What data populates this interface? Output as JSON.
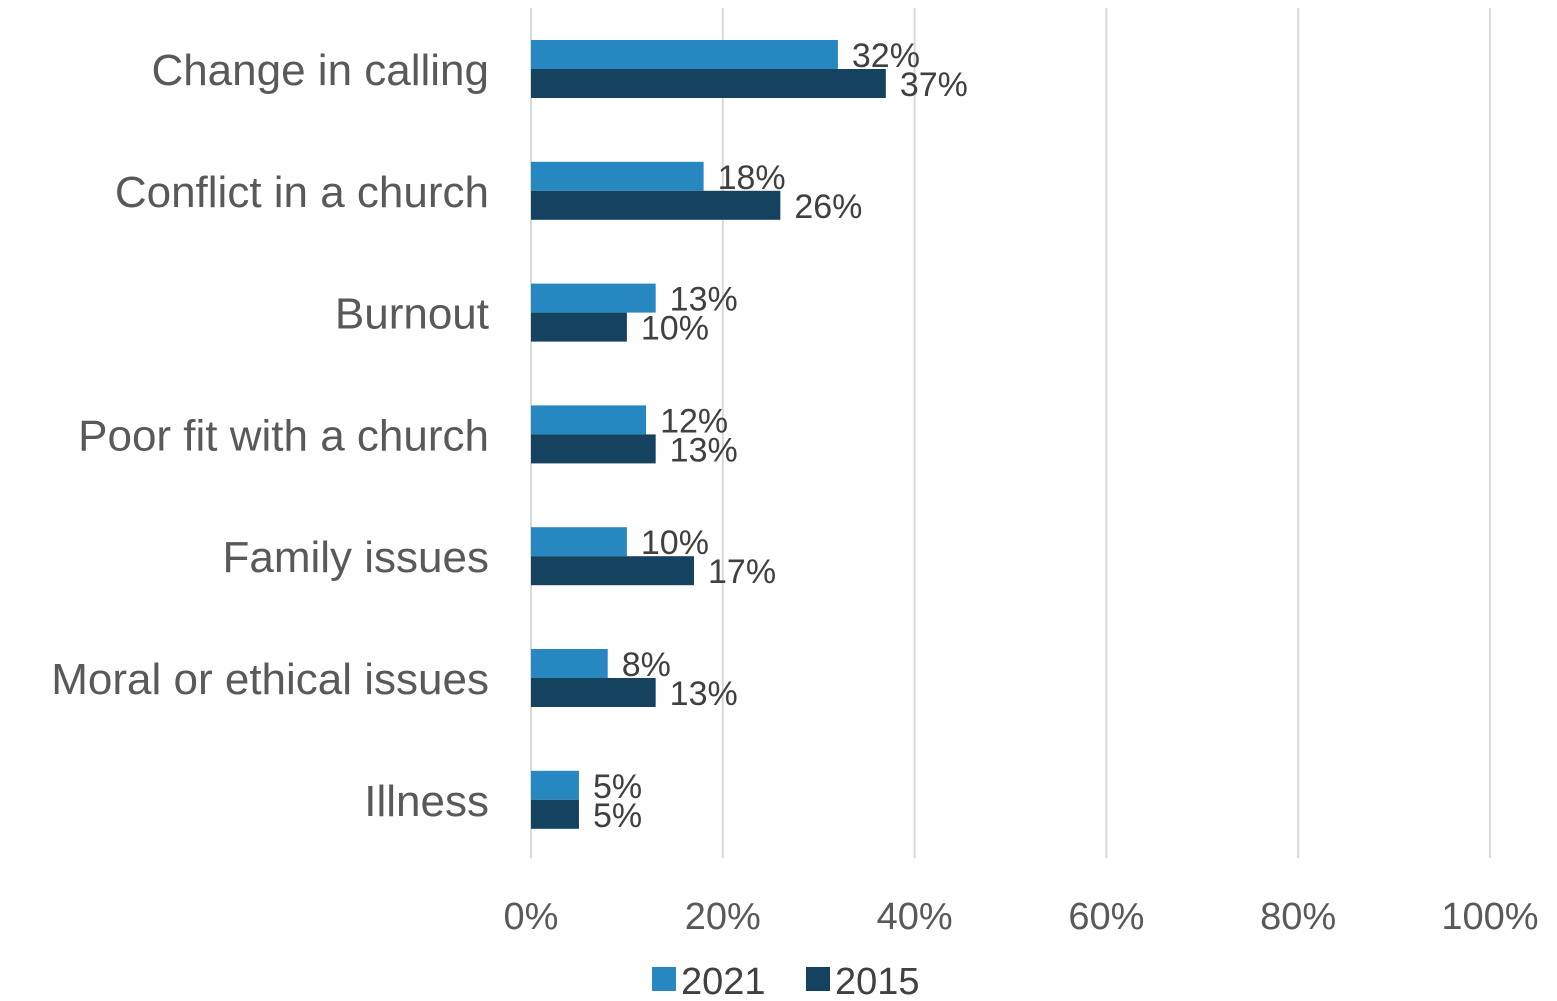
{
  "chart_data": {
    "type": "bar",
    "orientation": "horizontal",
    "categories": [
      "Change in calling",
      "Conflict in a church",
      "Burnout",
      "Poor fit with a church",
      "Family issues",
      "Moral or ethical issues",
      "Illness"
    ],
    "series": [
      {
        "name": "2021",
        "color": "#2787c0",
        "values": [
          32,
          18,
          13,
          12,
          10,
          8,
          5
        ],
        "labels": [
          "32%",
          "18%",
          "13%",
          "12%",
          "10%",
          "8%",
          "5%"
        ]
      },
      {
        "name": "2015",
        "color": "#15425f",
        "values": [
          37,
          26,
          10,
          13,
          17,
          13,
          5
        ],
        "labels": [
          "37%",
          "26%",
          "10%",
          "13%",
          "17%",
          "13%",
          "5%"
        ]
      }
    ],
    "xlim": [
      0,
      100
    ],
    "xticks": [
      0,
      20,
      40,
      60,
      80,
      100
    ],
    "xtick_labels": [
      "0%",
      "20%",
      "40%",
      "60%",
      "80%",
      "100%"
    ],
    "grid": true,
    "legend_position": "bottom",
    "title": "",
    "xlabel": "",
    "ylabel": ""
  }
}
